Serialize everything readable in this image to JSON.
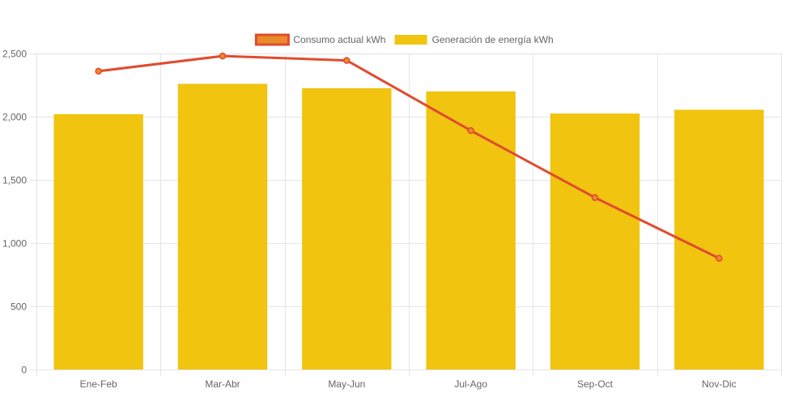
{
  "chart_data": {
    "type": "bar",
    "categories": [
      "Ene-Feb",
      "Mar-Abr",
      "May-Jun",
      "Jul-Ago",
      "Sep-Oct",
      "Nov-Dic"
    ],
    "series": [
      {
        "name": "Consumo actual kWh",
        "type": "line",
        "values": [
          2360,
          2480,
          2445,
          1890,
          1360,
          880
        ],
        "color": "#e14b2f",
        "legend_fill": "#e98b2a"
      },
      {
        "name": "Generación de energía kWh",
        "type": "bar",
        "values": [
          2020,
          2260,
          2225,
          2200,
          2025,
          2055
        ],
        "color": "#f0c40f"
      }
    ],
    "y_ticks": [
      "0",
      "500",
      "1,000",
      "1,500",
      "2,000",
      "2,500"
    ],
    "ylim": [
      0,
      2500
    ],
    "grid": true,
    "legend_position": "top-center",
    "title": "",
    "xlabel": "",
    "ylabel": ""
  }
}
